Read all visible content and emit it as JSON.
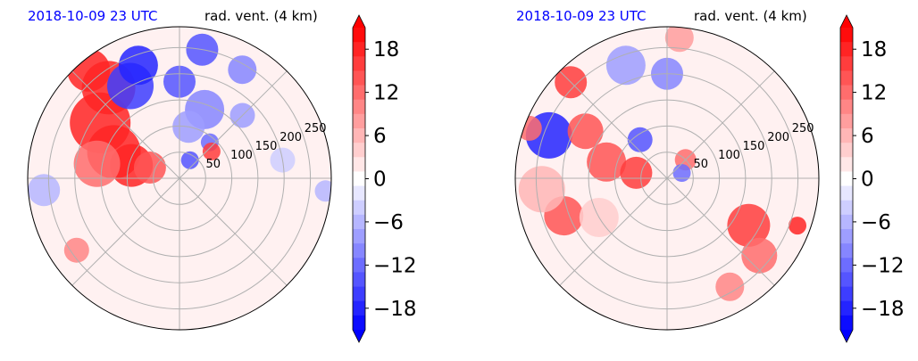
{
  "colors": {
    "timestamp": "#0000ff",
    "positive_max": "#ff0000",
    "negative_max": "#0000ff",
    "neutral": "#ffffff",
    "grid": "#b0b0b0",
    "outline": "#000000"
  },
  "chart_data": [
    {
      "type": "heatmap",
      "projection": "polar",
      "timestamp": "2018-10-09 23 UTC",
      "title": "rad. vent. (4 km)",
      "radial_ticks": [
        "50",
        "100",
        "150",
        "200",
        "250"
      ],
      "radial_range": [
        0,
        290
      ],
      "azimuth_gridlines_deg": [
        0,
        45,
        90,
        135,
        180,
        225,
        270,
        315
      ],
      "colorbar": {
        "ticks": [
          "18",
          "12",
          "6",
          "0",
          "−6",
          "−12",
          "−18"
        ],
        "tick_values": [
          18,
          12,
          6,
          0,
          -6,
          -12,
          -18
        ],
        "range": [
          -21,
          21
        ],
        "levels": 21,
        "extend": "both"
      },
      "features": [
        {
          "r": 270,
          "az": 130,
          "rad": 24,
          "value": 18
        },
        {
          "r": 220,
          "az": 128,
          "rad": 30,
          "value": 18
        },
        {
          "r": 185,
          "az": 145,
          "rad": 34,
          "value": 18
        },
        {
          "r": 135,
          "az": 158,
          "rad": 30,
          "value": 18
        },
        {
          "r": 95,
          "az": 165,
          "rad": 24,
          "value": 18
        },
        {
          "r": 60,
          "az": 160,
          "rad": 18,
          "value": 14
        },
        {
          "r": 160,
          "az": 170,
          "rad": 26,
          "value": 12
        },
        {
          "r": 200,
          "az": 118,
          "rad": 26,
          "value": -16
        },
        {
          "r": 230,
          "az": 110,
          "rad": 22,
          "value": -18
        },
        {
          "r": 185,
          "az": 90,
          "rad": 18,
          "value": -14
        },
        {
          "r": 140,
          "az": 70,
          "rad": 22,
          "value": -10
        },
        {
          "r": 250,
          "az": 80,
          "rad": 18,
          "value": -14
        },
        {
          "r": 240,
          "az": 60,
          "rad": 16,
          "value": -10
        },
        {
          "r": 100,
          "az": 80,
          "rad": 18,
          "value": -8
        },
        {
          "r": 90,
          "az": 50,
          "rad": 10,
          "value": -12
        },
        {
          "r": 80,
          "az": 40,
          "rad": 10,
          "value": 16
        },
        {
          "r": 40,
          "az": 60,
          "rad": 10,
          "value": -14
        },
        {
          "r": 260,
          "az": 185,
          "rad": 18,
          "value": -6
        },
        {
          "r": 240,
          "az": 215,
          "rad": 14,
          "value": 10
        },
        {
          "r": 200,
          "az": 10,
          "rad": 14,
          "value": -4
        },
        {
          "r": 280,
          "az": 355,
          "rad": 12,
          "value": -6
        },
        {
          "r": 170,
          "az": 45,
          "rad": 14,
          "value": -8
        }
      ]
    },
    {
      "type": "heatmap",
      "projection": "polar",
      "timestamp": "2018-10-09 23 UTC",
      "title": "rad. vent. (4 km)",
      "radial_ticks": [
        "50",
        "100",
        "150",
        "200",
        "250"
      ],
      "radial_range": [
        0,
        290
      ],
      "azimuth_gridlines_deg": [
        0,
        45,
        90,
        135,
        180,
        225,
        270,
        315
      ],
      "colorbar": {
        "ticks": [
          "18",
          "12",
          "6",
          "0",
          "−6",
          "−12",
          "−18"
        ],
        "tick_values": [
          18,
          12,
          6,
          0,
          -6,
          -12,
          -18
        ],
        "range": [
          -21,
          21
        ],
        "levels": 21,
        "extend": "both"
      },
      "features": [
        {
          "r": 240,
          "az": 160,
          "rad": 26,
          "value": -18
        },
        {
          "r": 260,
          "az": 135,
          "rad": 18,
          "value": 16
        },
        {
          "r": 280,
          "az": 160,
          "rad": 14,
          "value": 12
        },
        {
          "r": 180,
          "az": 150,
          "rad": 20,
          "value": 14
        },
        {
          "r": 120,
          "az": 165,
          "rad": 22,
          "value": 14
        },
        {
          "r": 60,
          "az": 170,
          "rad": 18,
          "value": 16
        },
        {
          "r": 210,
          "az": 200,
          "rad": 22,
          "value": 14
        },
        {
          "r": 90,
          "az": 125,
          "rad": 14,
          "value": -14
        },
        {
          "r": 50,
          "az": 45,
          "rad": 12,
          "value": 12
        },
        {
          "r": 30,
          "az": 20,
          "rad": 10,
          "value": -12
        },
        {
          "r": 230,
          "az": 110,
          "rad": 22,
          "value": -8
        },
        {
          "r": 200,
          "az": 90,
          "rad": 18,
          "value": -10
        },
        {
          "r": 270,
          "az": 85,
          "rad": 16,
          "value": 8
        },
        {
          "r": 180,
          "az": 330,
          "rad": 24,
          "value": 16
        },
        {
          "r": 230,
          "az": 320,
          "rad": 20,
          "value": 12
        },
        {
          "r": 240,
          "az": 300,
          "rad": 16,
          "value": 10
        },
        {
          "r": 265,
          "az": 340,
          "rad": 10,
          "value": 18
        },
        {
          "r": 240,
          "az": 185,
          "rad": 26,
          "value": 6
        },
        {
          "r": 150,
          "az": 210,
          "rad": 22,
          "value": 4
        }
      ]
    }
  ]
}
